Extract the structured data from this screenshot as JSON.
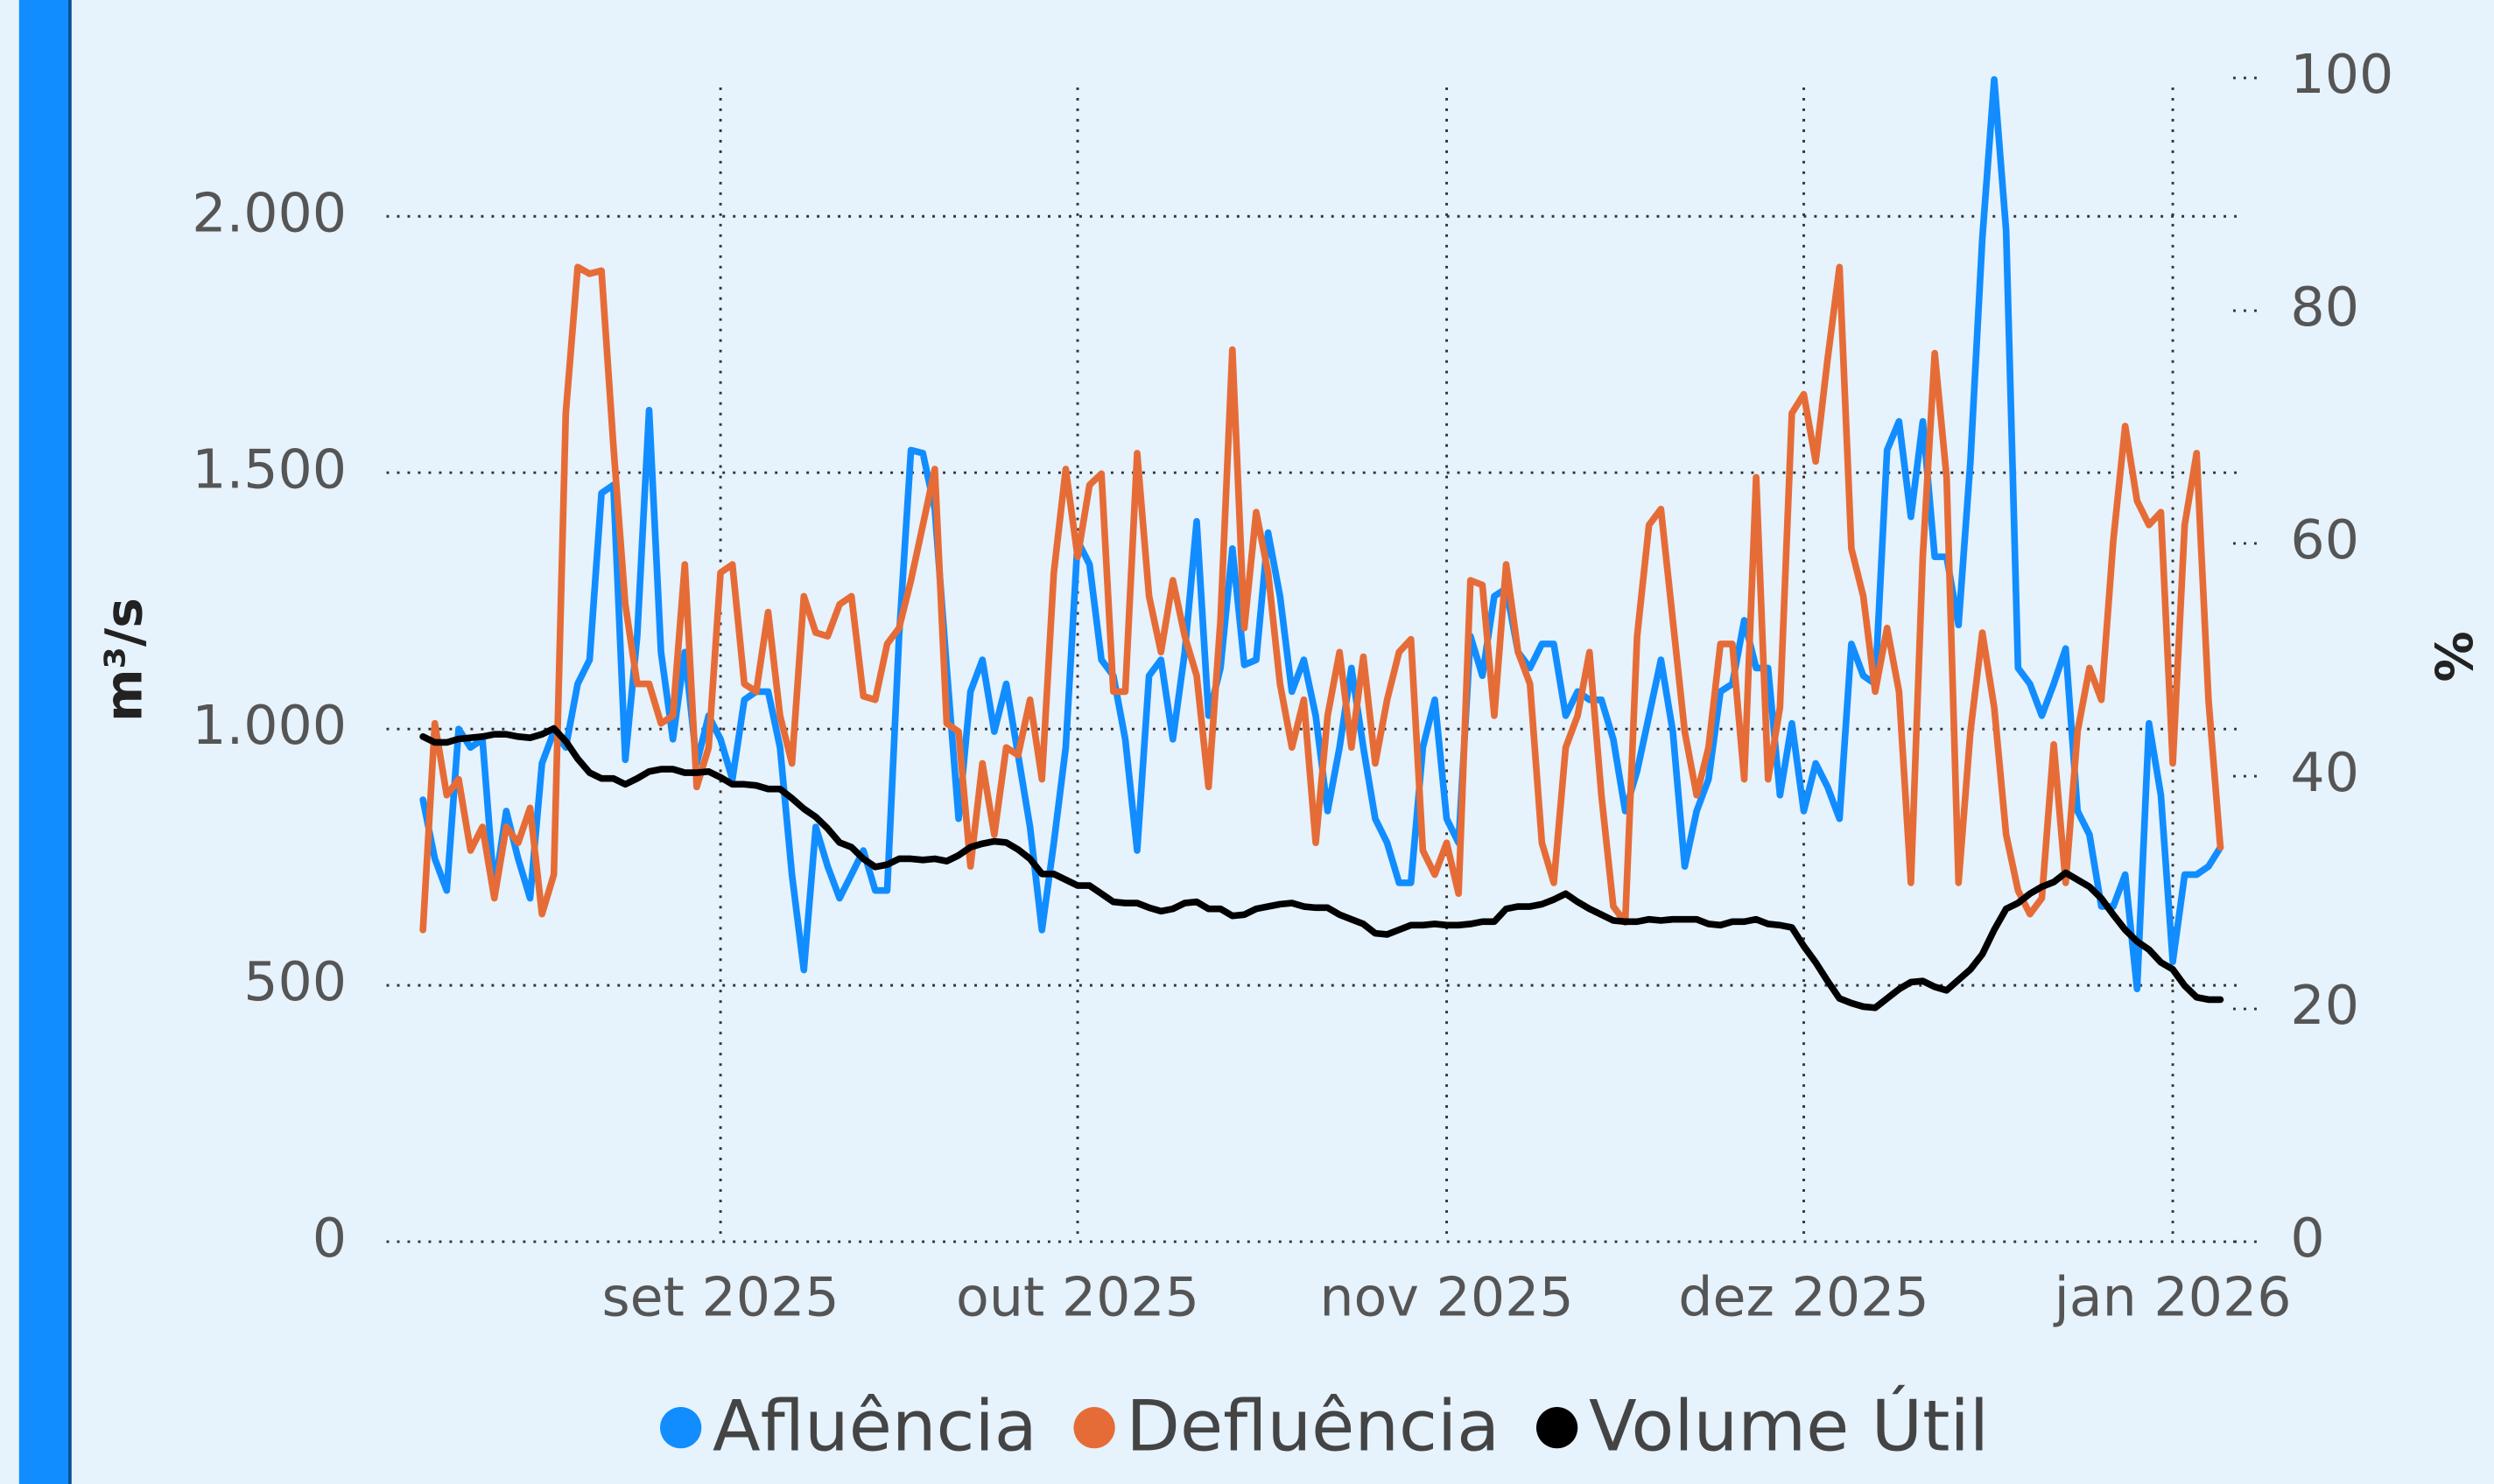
{
  "chart_data": {
    "type": "line",
    "y_label": "m³/s",
    "y2_label": "%",
    "categories": [
      null,
      null,
      null,
      null,
      null,
      null,
      null,
      null,
      null,
      null,
      null,
      null,
      null,
      null,
      null,
      null,
      null,
      null,
      null,
      null,
      null,
      null,
      null,
      null,
      null,
      "set 2025",
      null,
      null,
      null,
      null,
      null,
      null,
      null,
      null,
      null,
      null,
      null,
      null,
      null,
      null,
      null,
      null,
      null,
      null,
      null,
      null,
      null,
      null,
      null,
      null,
      null,
      null,
      null,
      null,
      null,
      "out 2025",
      null,
      null,
      null,
      null,
      null,
      null,
      null,
      null,
      null,
      null,
      null,
      null,
      null,
      null,
      null,
      null,
      null,
      null,
      null,
      null,
      null,
      null,
      null,
      null,
      null,
      null,
      null,
      null,
      null,
      null,
      "nov 2025",
      null,
      null,
      null,
      null,
      null,
      null,
      null,
      null,
      null,
      null,
      null,
      null,
      null,
      null,
      null,
      null,
      null,
      null,
      null,
      null,
      null,
      null,
      null,
      null,
      null,
      null,
      null,
      null,
      null,
      "dez 2025",
      null,
      null,
      null,
      null,
      null,
      null,
      null,
      null,
      null,
      null,
      null,
      null,
      null,
      null,
      null,
      null,
      null,
      null,
      null,
      null,
      null,
      null,
      null,
      null,
      null,
      null,
      null,
      null,
      null,
      null,
      "jan 2026",
      null,
      null,
      null,
      null
    ],
    "series": [
      {
        "name": "Afluência",
        "color": "#118dff",
        "axis": "y",
        "values": [
          862,
          747,
          685,
          1000,
          964,
          980,
          685,
          840,
          747,
          670,
          933,
          995,
          964,
          1088,
          1135,
          1460,
          1476,
          940,
          1181,
          1622,
          1150,
          980,
          1150,
          933,
          1026,
          980,
          902,
          1057,
          1073,
          1073,
          964,
          716,
          530,
          809,
          732,
          670,
          716,
          763,
          685,
          685,
          1181,
          1544,
          1538,
          1429,
          1119,
          825,
          1073,
          1135,
          995,
          1088,
          949,
          809,
          608,
          778,
          964,
          1367,
          1321,
          1135,
          1104,
          980,
          763,
          1104,
          1135,
          980,
          1150,
          1405,
          1026,
          1119,
          1352,
          1125,
          1135,
          1383,
          1259,
          1073,
          1135,
          1026,
          840,
          964,
          1119,
          964,
          825,
          778,
          700,
          700,
          964,
          1057,
          825,
          778,
          1181,
          1104,
          1259,
          1274,
          1150,
          1119,
          1166,
          1166,
          1026,
          1073,
          1057,
          1057,
          980,
          840,
          918,
          1026,
          1135,
          995,
          732,
          840,
          902,
          1073,
          1088,
          1212,
          1119,
          1119,
          871,
          1011,
          840,
          933,
          887,
          825,
          1166,
          1104,
          1088,
          1544,
          1600,
          1414,
          1600,
          1336,
          1336,
          1203,
          1522,
          1957,
          2267,
          1972,
          1119,
          1088,
          1026,
          1088,
          1157,
          840,
          794,
          654,
          654,
          716,
          493,
          1011,
          871,
          546,
          716,
          716,
          732,
          769
        ]
      },
      {
        "name": "Defluência",
        "color": "#e66c37",
        "axis": "y",
        "values": [
          608,
          1011,
          871,
          902,
          763,
          809,
          670,
          809,
          778,
          846,
          639,
          716,
          1616,
          1901,
          1888,
          1894,
          1553,
          1243,
          1088,
          1088,
          1011,
          1026,
          1321,
          887,
          964,
          1305,
          1321,
          1088,
          1073,
          1228,
          1026,
          933,
          1259,
          1188,
          1181,
          1243,
          1259,
          1064,
          1057,
          1166,
          1197,
          1290,
          1398,
          1507,
          1011,
          995,
          732,
          933,
          794,
          964,
          949,
          1057,
          902,
          1305,
          1507,
          1336,
          1476,
          1498,
          1073,
          1073,
          1538,
          1259,
          1150,
          1290,
          1181,
          1104,
          887,
          1212,
          1740,
          1197,
          1423,
          1305,
          1088,
          964,
          1057,
          778,
          1026,
          1150,
          964,
          1141,
          933,
          1057,
          1150,
          1175,
          763,
          716,
          778,
          679,
          1290,
          1281,
          1026,
          1321,
          1150,
          1088,
          778,
          700,
          964,
          1026,
          1150,
          871,
          654,
          623,
          1181,
          1398,
          1429,
          1212,
          995,
          871,
          964,
          1166,
          1166,
          902,
          1491,
          902,
          1042,
          1616,
          1653,
          1522,
          1721,
          1901,
          1352,
          1259,
          1073,
          1197,
          1073,
          700,
          1336,
          1733,
          1491,
          700,
          995,
          1188,
          1042,
          794,
          685,
          639,
          670,
          970,
          700,
          995,
          1119,
          1057,
          1367,
          1591,
          1445,
          1398,
          1423,
          933,
          1398,
          1538,
          1057,
          769
        ]
      },
      {
        "name": "Volume Útil",
        "color": "#000000",
        "axis": "y2",
        "values": [
          43.4,
          42.9,
          42.9,
          43.2,
          43.3,
          43.4,
          43.6,
          43.6,
          43.4,
          43.3,
          43.6,
          44.1,
          43.0,
          41.5,
          40.3,
          39.8,
          39.8,
          39.3,
          39.8,
          40.4,
          40.6,
          40.6,
          40.3,
          40.3,
          40.4,
          39.9,
          39.3,
          39.3,
          39.2,
          38.9,
          38.9,
          38.1,
          37.2,
          36.5,
          35.5,
          34.3,
          33.9,
          32.9,
          32.2,
          32.4,
          32.9,
          32.9,
          32.8,
          32.9,
          32.7,
          33.2,
          33.9,
          34.2,
          34.4,
          34.3,
          33.7,
          32.9,
          31.6,
          31.6,
          31.1,
          30.6,
          30.6,
          29.9,
          29.2,
          29.1,
          29.1,
          28.7,
          28.4,
          28.6,
          29.1,
          29.2,
          28.6,
          28.6,
          28.0,
          28.1,
          28.6,
          28.8,
          29.0,
          29.1,
          28.8,
          28.7,
          28.7,
          28.1,
          27.7,
          27.3,
          26.5,
          26.4,
          26.8,
          27.2,
          27.2,
          27.3,
          27.2,
          27.2,
          27.3,
          27.5,
          27.5,
          28.6,
          28.8,
          28.8,
          29.0,
          29.4,
          29.9,
          29.2,
          28.6,
          28.1,
          27.6,
          27.5,
          27.5,
          27.7,
          27.6,
          27.7,
          27.7,
          27.7,
          27.3,
          27.2,
          27.5,
          27.5,
          27.7,
          27.3,
          27.2,
          27.0,
          25.4,
          24.0,
          22.4,
          20.9,
          20.5,
          20.2,
          20.1,
          20.9,
          21.7,
          22.3,
          22.4,
          21.9,
          21.6,
          22.5,
          23.4,
          24.7,
          26.8,
          28.6,
          29.1,
          29.9,
          30.5,
          30.9,
          31.7,
          31.1,
          30.5,
          29.5,
          28.1,
          26.8,
          25.8,
          25.1,
          24.0,
          23.4,
          22.0,
          21.0,
          20.8,
          20.8
        ]
      }
    ],
    "ylim": [
      0,
      2270
    ],
    "yticks": [
      0,
      500,
      {
        "value": 1000,
        "label": "1.000"
      },
      {
        "value": 1500,
        "label": "1.500"
      },
      {
        "value": 2000,
        "label": "2.000"
      }
    ],
    "y2lim": [
      0,
      100
    ],
    "y2ticks": [
      0,
      20,
      40,
      60,
      80,
      100
    ],
    "grid": true,
    "legend_position": "bottom"
  }
}
